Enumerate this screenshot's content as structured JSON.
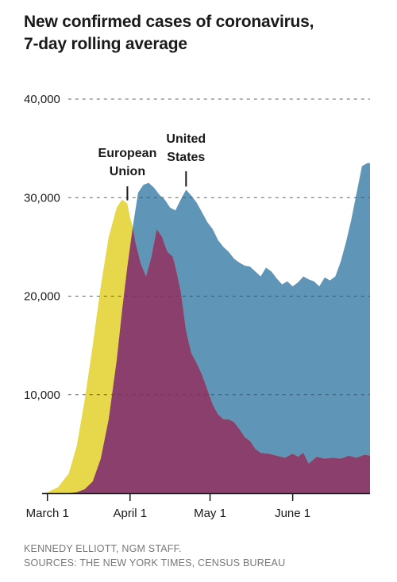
{
  "title_lines": [
    "New confirmed cases of coronavirus,",
    "7-day rolling average"
  ],
  "credit": "KENNEDY ELLIOTT, NGM STAFF.",
  "sources": "SOURCES: THE NEW YORK TIMES, CENSUS BUREAU",
  "chart_data": {
    "type": "area",
    "title": "New confirmed cases of coronavirus, 7-day rolling average",
    "xlabel": "",
    "ylabel": "",
    "ylim": [
      0,
      40000
    ],
    "yticks": [
      10000,
      20000,
      30000,
      40000
    ],
    "ytick_labels": [
      "10,000",
      "20,000",
      "30,000",
      "40,000"
    ],
    "grid": true,
    "x_tick_labels": [
      "March 1",
      "April 1",
      "May 1",
      "June 1"
    ],
    "colors": {
      "eu": "#e6d84a",
      "us": "#5f95b6",
      "overlap": "#8b3f6c"
    },
    "series": [
      {
        "name": "European Union",
        "x": [
          "2020-02-28",
          "2020-03-01",
          "2020-03-05",
          "2020-03-09",
          "2020-03-12",
          "2020-03-15",
          "2020-03-18",
          "2020-03-21",
          "2020-03-24",
          "2020-03-27",
          "2020-03-29",
          "2020-03-31",
          "2020-04-01",
          "2020-04-02",
          "2020-04-03",
          "2020-04-05",
          "2020-04-07",
          "2020-04-09",
          "2020-04-11",
          "2020-04-13",
          "2020-04-14",
          "2020-04-15",
          "2020-04-17",
          "2020-04-18",
          "2020-04-20",
          "2020-04-22",
          "2020-04-24",
          "2020-04-26",
          "2020-04-28",
          "2020-04-30",
          "2020-05-02",
          "2020-05-04",
          "2020-05-06",
          "2020-05-08",
          "2020-05-10",
          "2020-05-12",
          "2020-05-14",
          "2020-05-16",
          "2020-05-18",
          "2020-05-20",
          "2020-05-23",
          "2020-05-26",
          "2020-05-29",
          "2020-06-01",
          "2020-06-03",
          "2020-06-05",
          "2020-06-07",
          "2020-06-10",
          "2020-06-13",
          "2020-06-16",
          "2020-06-19",
          "2020-06-22",
          "2020-06-25",
          "2020-06-28",
          "2020-06-30"
        ],
        "values": [
          0,
          100,
          600,
          2000,
          4800,
          9500,
          15000,
          21000,
          26000,
          29000,
          29800,
          29400,
          28000,
          27000,
          25500,
          23300,
          22000,
          24000,
          26800,
          26000,
          25200,
          24500,
          24000,
          23000,
          20500,
          16500,
          14200,
          13200,
          12000,
          10500,
          9000,
          8000,
          7500,
          7500,
          7200,
          6500,
          5700,
          5300,
          4500,
          4100,
          4000,
          3800,
          3600,
          4000,
          3700,
          4100,
          3000,
          3700,
          3500,
          3600,
          3500,
          3800,
          3600,
          3900,
          3800
        ]
      },
      {
        "name": "United States",
        "x": [
          "2020-02-28",
          "2020-03-01",
          "2020-03-05",
          "2020-03-09",
          "2020-03-12",
          "2020-03-15",
          "2020-03-18",
          "2020-03-21",
          "2020-03-24",
          "2020-03-27",
          "2020-03-29",
          "2020-03-31",
          "2020-04-02",
          "2020-04-04",
          "2020-04-06",
          "2020-04-08",
          "2020-04-10",
          "2020-04-12",
          "2020-04-14",
          "2020-04-16",
          "2020-04-18",
          "2020-04-20",
          "2020-04-22",
          "2020-04-24",
          "2020-04-26",
          "2020-04-28",
          "2020-04-30",
          "2020-05-02",
          "2020-05-04",
          "2020-05-06",
          "2020-05-08",
          "2020-05-10",
          "2020-05-12",
          "2020-05-14",
          "2020-05-16",
          "2020-05-18",
          "2020-05-20",
          "2020-05-22",
          "2020-05-24",
          "2020-05-26",
          "2020-05-28",
          "2020-05-30",
          "2020-06-01",
          "2020-06-03",
          "2020-06-05",
          "2020-06-07",
          "2020-06-09",
          "2020-06-11",
          "2020-06-13",
          "2020-06-15",
          "2020-06-17",
          "2020-06-19",
          "2020-06-21",
          "2020-06-23",
          "2020-06-25",
          "2020-06-27",
          "2020-06-29",
          "2020-06-30"
        ],
        "values": [
          0,
          0,
          0,
          0,
          100,
          400,
          1200,
          3500,
          7500,
          13500,
          18500,
          23000,
          27000,
          30500,
          31300,
          31500,
          31000,
          30300,
          29800,
          29000,
          28700,
          29800,
          30800,
          30200,
          29500,
          28500,
          27500,
          26800,
          25700,
          25000,
          24500,
          23800,
          23400,
          23100,
          23000,
          22500,
          22000,
          22900,
          22500,
          21800,
          21200,
          21500,
          21000,
          21400,
          22000,
          21700,
          21500,
          21000,
          21900,
          21600,
          22000,
          23500,
          25500,
          27800,
          30500,
          33200,
          33500,
          33500
        ]
      }
    ],
    "annotations": [
      {
        "label": [
          "European",
          "Union"
        ],
        "series": "European Union",
        "x": "2020-03-31",
        "y": 29400
      },
      {
        "label": [
          "United",
          "States"
        ],
        "series": "United States",
        "x": "2020-04-22",
        "y": 30800
      }
    ]
  }
}
